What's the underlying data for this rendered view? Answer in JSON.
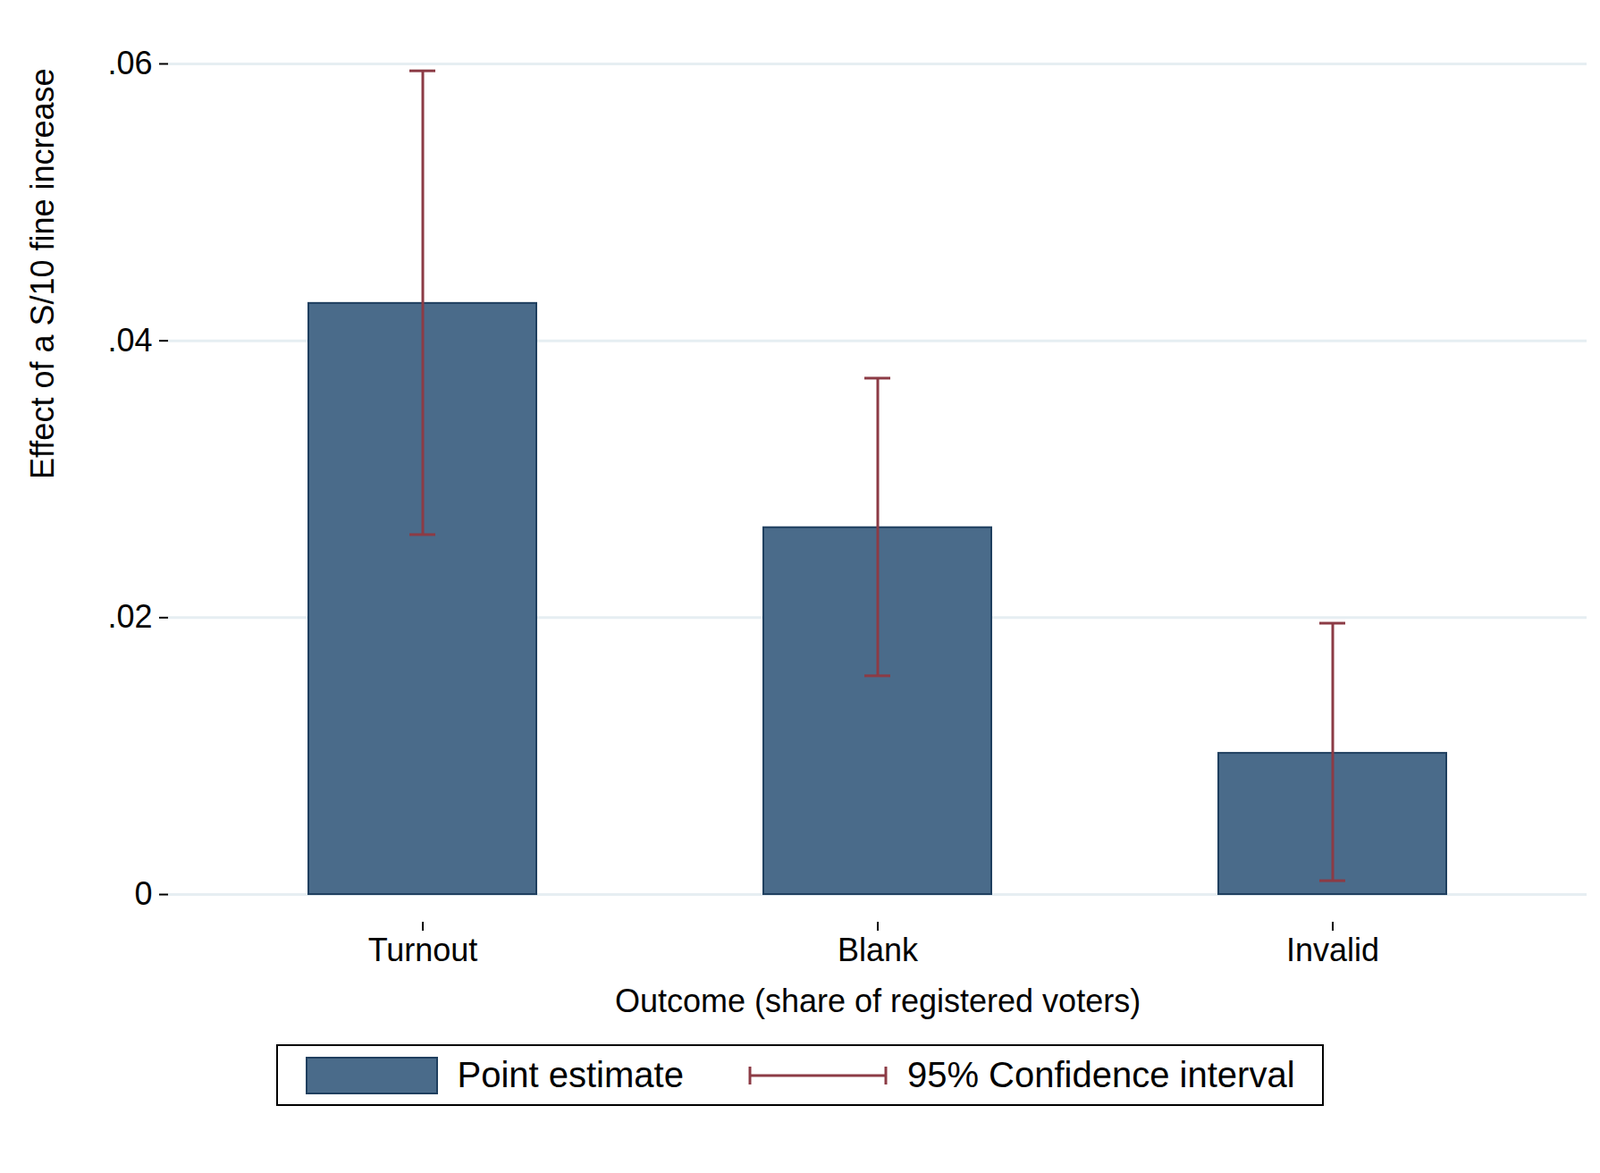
{
  "chart_data": {
    "type": "bar",
    "categories": [
      "Turnout",
      "Blank",
      "Invalid"
    ],
    "series": [
      {
        "name": "Point estimate",
        "color": "#4a6b8a",
        "values": [
          0.0427,
          0.0265,
          0.0102
        ]
      }
    ],
    "error_bars": {
      "name": "95% Confidence interval",
      "color": "#8c3b45",
      "low": [
        0.026,
        0.0158,
        0.001
      ],
      "high": [
        0.0595,
        0.0373,
        0.0196
      ]
    },
    "x_label": "Outcome (share of registered voters)",
    "y_label": "Effect of a S/10 fine increase",
    "ylim": [
      -0.002,
      0.062
    ],
    "yticks": [
      0,
      {
        "value": 0.02,
        "label": ".02"
      },
      {
        "value": 0.04,
        "label": ".04"
      },
      {
        "value": 0.06,
        "label": ".06"
      }
    ],
    "grid": true,
    "legend": "bottom"
  }
}
